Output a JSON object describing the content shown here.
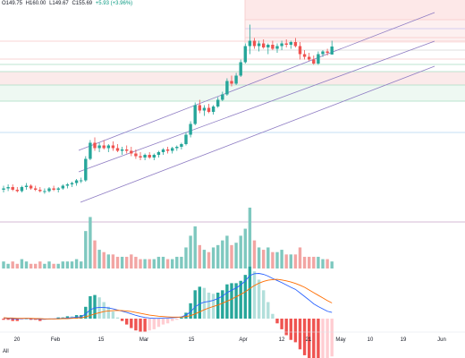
{
  "header": {
    "open": "O149.75",
    "high": "H160.00",
    "low": "L149.67",
    "close": "C155.69",
    "change": "+5.93 (+3.96%)"
  },
  "range_button": "All",
  "colors": {
    "up": "#26a69a",
    "down": "#ef5350",
    "up_volume": "#7ec8bf",
    "down_volume": "#f2a5a3",
    "channel": "#8e7cc3",
    "macd_line": "#2962ff",
    "signal_line": "#ff6d00",
    "fib_red": "#f7c9c9",
    "fib_green": "#a8dcc3",
    "fib_blue": "#b3d4f2"
  },
  "chart_data": {
    "type": "candlestick",
    "x_ticks": [
      "20",
      "Feb",
      "15",
      "Mar",
      "15",
      "Apr",
      "12",
      "21",
      "May",
      "10",
      "19",
      "Jun"
    ],
    "ylim": [
      25,
      185
    ],
    "candles": [
      {
        "o": 49,
        "h": 52,
        "l": 47,
        "c": 50
      },
      {
        "o": 50,
        "h": 53,
        "l": 48,
        "c": 51
      },
      {
        "o": 51,
        "h": 53,
        "l": 48,
        "c": 49
      },
      {
        "o": 49,
        "h": 51,
        "l": 47,
        "c": 48
      },
      {
        "o": 48,
        "h": 52,
        "l": 47,
        "c": 51
      },
      {
        "o": 51,
        "h": 54,
        "l": 49,
        "c": 52
      },
      {
        "o": 52,
        "h": 53,
        "l": 49,
        "c": 50
      },
      {
        "o": 50,
        "h": 52,
        "l": 48,
        "c": 49
      },
      {
        "o": 49,
        "h": 51,
        "l": 47,
        "c": 48
      },
      {
        "o": 48,
        "h": 50,
        "l": 46,
        "c": 48
      },
      {
        "o": 48,
        "h": 51,
        "l": 47,
        "c": 50
      },
      {
        "o": 50,
        "h": 52,
        "l": 48,
        "c": 49
      },
      {
        "o": 49,
        "h": 51,
        "l": 47,
        "c": 50
      },
      {
        "o": 50,
        "h": 53,
        "l": 49,
        "c": 52
      },
      {
        "o": 52,
        "h": 54,
        "l": 50,
        "c": 53
      },
      {
        "o": 53,
        "h": 55,
        "l": 51,
        "c": 54
      },
      {
        "o": 54,
        "h": 57,
        "l": 52,
        "c": 56
      },
      {
        "o": 56,
        "h": 58,
        "l": 54,
        "c": 56
      },
      {
        "o": 56,
        "h": 74,
        "l": 55,
        "c": 72
      },
      {
        "o": 72,
        "h": 86,
        "l": 71,
        "c": 84
      },
      {
        "o": 84,
        "h": 88,
        "l": 78,
        "c": 80
      },
      {
        "o": 80,
        "h": 84,
        "l": 77,
        "c": 82
      },
      {
        "o": 82,
        "h": 86,
        "l": 79,
        "c": 80
      },
      {
        "o": 80,
        "h": 83,
        "l": 77,
        "c": 82
      },
      {
        "o": 82,
        "h": 85,
        "l": 78,
        "c": 80
      },
      {
        "o": 80,
        "h": 83,
        "l": 77,
        "c": 78
      },
      {
        "o": 78,
        "h": 81,
        "l": 75,
        "c": 79
      },
      {
        "o": 79,
        "h": 82,
        "l": 76,
        "c": 78
      },
      {
        "o": 78,
        "h": 81,
        "l": 74,
        "c": 76
      },
      {
        "o": 76,
        "h": 79,
        "l": 72,
        "c": 74
      },
      {
        "o": 74,
        "h": 77,
        "l": 71,
        "c": 73
      },
      {
        "o": 73,
        "h": 76,
        "l": 71,
        "c": 75
      },
      {
        "o": 75,
        "h": 77,
        "l": 72,
        "c": 73
      },
      {
        "o": 73,
        "h": 76,
        "l": 71,
        "c": 75
      },
      {
        "o": 75,
        "h": 78,
        "l": 73,
        "c": 77
      },
      {
        "o": 77,
        "h": 80,
        "l": 75,
        "c": 79
      },
      {
        "o": 79,
        "h": 81,
        "l": 76,
        "c": 78
      },
      {
        "o": 78,
        "h": 81,
        "l": 76,
        "c": 80
      },
      {
        "o": 80,
        "h": 82,
        "l": 78,
        "c": 81
      },
      {
        "o": 81,
        "h": 84,
        "l": 79,
        "c": 83
      },
      {
        "o": 83,
        "h": 92,
        "l": 82,
        "c": 90
      },
      {
        "o": 90,
        "h": 100,
        "l": 88,
        "c": 98
      },
      {
        "o": 98,
        "h": 114,
        "l": 97,
        "c": 112
      },
      {
        "o": 112,
        "h": 116,
        "l": 106,
        "c": 108
      },
      {
        "o": 108,
        "h": 112,
        "l": 104,
        "c": 110
      },
      {
        "o": 110,
        "h": 113,
        "l": 106,
        "c": 107
      },
      {
        "o": 107,
        "h": 112,
        "l": 105,
        "c": 111
      },
      {
        "o": 111,
        "h": 118,
        "l": 110,
        "c": 116
      },
      {
        "o": 116,
        "h": 122,
        "l": 115,
        "c": 120
      },
      {
        "o": 120,
        "h": 132,
        "l": 119,
        "c": 130
      },
      {
        "o": 130,
        "h": 134,
        "l": 126,
        "c": 128
      },
      {
        "o": 128,
        "h": 136,
        "l": 127,
        "c": 134
      },
      {
        "o": 134,
        "h": 146,
        "l": 133,
        "c": 144
      },
      {
        "o": 144,
        "h": 158,
        "l": 143,
        "c": 156
      },
      {
        "o": 156,
        "h": 172,
        "l": 150,
        "c": 160
      },
      {
        "o": 160,
        "h": 162,
        "l": 154,
        "c": 156
      },
      {
        "o": 156,
        "h": 160,
        "l": 152,
        "c": 158
      },
      {
        "o": 158,
        "h": 161,
        "l": 154,
        "c": 155
      },
      {
        "o": 155,
        "h": 158,
        "l": 150,
        "c": 157
      },
      {
        "o": 157,
        "h": 160,
        "l": 153,
        "c": 154
      },
      {
        "o": 154,
        "h": 158,
        "l": 151,
        "c": 156
      },
      {
        "o": 156,
        "h": 160,
        "l": 153,
        "c": 158
      },
      {
        "o": 158,
        "h": 161,
        "l": 155,
        "c": 157
      },
      {
        "o": 157,
        "h": 160,
        "l": 154,
        "c": 159
      },
      {
        "o": 159,
        "h": 162,
        "l": 155,
        "c": 156
      },
      {
        "o": 156,
        "h": 159,
        "l": 146,
        "c": 150
      },
      {
        "o": 150,
        "h": 153,
        "l": 146,
        "c": 148
      },
      {
        "o": 148,
        "h": 151,
        "l": 145,
        "c": 146
      },
      {
        "o": 146,
        "h": 149,
        "l": 142,
        "c": 143
      },
      {
        "o": 143,
        "h": 152,
        "l": 142,
        "c": 150
      },
      {
        "o": 150,
        "h": 153,
        "l": 148,
        "c": 152
      },
      {
        "o": 152,
        "h": 154,
        "l": 149,
        "c": 151
      },
      {
        "o": 149.75,
        "h": 160,
        "l": 149.67,
        "c": 155.69
      }
    ],
    "volume": [
      3,
      2,
      3,
      2,
      4,
      3,
      2,
      2,
      3,
      2,
      3,
      2,
      2,
      3,
      3,
      3,
      4,
      3,
      16,
      22,
      12,
      8,
      7,
      6,
      6,
      5,
      5,
      5,
      6,
      5,
      4,
      4,
      4,
      4,
      5,
      5,
      4,
      4,
      5,
      5,
      9,
      14,
      18,
      10,
      8,
      7,
      9,
      10,
      12,
      14,
      10,
      11,
      14,
      17,
      26,
      12,
      9,
      8,
      9,
      7,
      7,
      8,
      6,
      6,
      6,
      9,
      5,
      5,
      5,
      5,
      4,
      4,
      3
    ],
    "macd": [
      0.2,
      0.1,
      0.0,
      -0.1,
      0.0,
      0.1,
      0.0,
      -0.1,
      -0.2,
      -0.2,
      -0.1,
      -0.1,
      0.0,
      0.1,
      0.2,
      0.3,
      0.5,
      0.6,
      1.6,
      3.0,
      3.6,
      3.8,
      3.8,
      3.6,
      3.3,
      2.9,
      2.5,
      2.1,
      1.6,
      1.1,
      0.7,
      0.4,
      0.2,
      0.1,
      0.1,
      0.2,
      0.2,
      0.3,
      0.4,
      0.6,
      1.2,
      2.3,
      4.0,
      5.0,
      5.6,
      5.8,
      6.2,
      6.8,
      7.6,
      8.8,
      9.6,
      10.4,
      11.4,
      12.8,
      14.6,
      15.2,
      15.3,
      15.0,
      14.4,
      13.6,
      12.9,
      12.2,
      11.4,
      10.6,
      9.9,
      8.7,
      7.5,
      6.3,
      5.0,
      4.1,
      3.3,
      2.5,
      2.1
    ],
    "signal": [
      0.3,
      0.2,
      0.2,
      0.1,
      0.1,
      0.1,
      0.1,
      0.0,
      0.0,
      -0.1,
      -0.1,
      -0.1,
      -0.1,
      0.0,
      0.0,
      0.1,
      0.2,
      0.3,
      0.6,
      1.1,
      1.6,
      2.0,
      2.4,
      2.6,
      2.7,
      2.8,
      2.7,
      2.6,
      2.4,
      2.1,
      1.8,
      1.5,
      1.2,
      1.0,
      0.8,
      0.7,
      0.6,
      0.5,
      0.5,
      0.5,
      0.7,
      1.0,
      1.6,
      2.3,
      3.0,
      3.6,
      4.1,
      4.6,
      5.2,
      5.9,
      6.6,
      7.4,
      8.2,
      9.1,
      10.2,
      11.2,
      12.0,
      12.6,
      13.0,
      13.2,
      13.3,
      13.1,
      12.8,
      12.4,
      11.9,
      11.3,
      10.6,
      9.7,
      8.8,
      7.9,
      7.0,
      6.1,
      5.3
    ]
  }
}
